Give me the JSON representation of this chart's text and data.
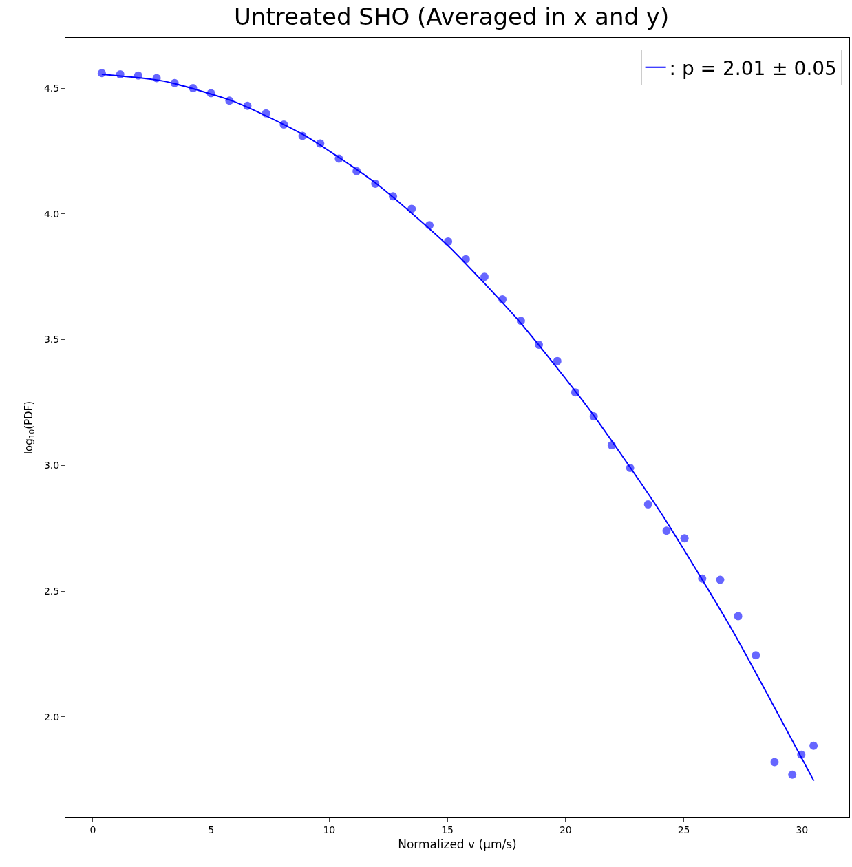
{
  "chart_data": {
    "type": "scatter",
    "title": "Untreated SHO (Averaged in x and y)",
    "xlabel": "Normalized v (μm/s)",
    "ylabel": "log$_{10}$(PDF)",
    "xlim": [
      -1.16,
      32.0
    ],
    "ylim": [
      1.6,
      4.7
    ],
    "xticks": [
      0,
      5,
      10,
      15,
      20,
      25,
      30
    ],
    "yticks": [
      {
        "value": 2,
        "label": "2.0"
      },
      {
        "value": 2.5,
        "label": "2.5"
      },
      {
        "value": 3,
        "label": "3.0"
      },
      {
        "value": 3.5,
        "label": "3.5"
      },
      {
        "value": 4,
        "label": "4.0"
      },
      {
        "value": 4.5,
        "label": "4.5"
      }
    ],
    "grid": false,
    "legend": "top right",
    "series": [
      {
        "color": "#0000ff",
        "marker": "circle",
        "x": [
          0.38,
          1.16,
          1.92,
          2.7,
          3.46,
          4.24,
          5.0,
          5.78,
          6.54,
          7.33,
          8.08,
          8.87,
          9.62,
          10.41,
          11.16,
          11.95,
          12.7,
          13.49,
          14.24,
          15.03,
          15.78,
          16.57,
          17.33,
          18.11,
          18.87,
          19.65,
          20.41,
          21.19,
          21.95,
          22.73,
          23.49,
          24.27,
          25.03,
          25.78,
          26.54,
          27.3,
          28.05,
          28.84,
          29.59,
          29.97,
          30.49
        ],
        "values": [
          4.56,
          4.555,
          4.55,
          4.54,
          4.52,
          4.5,
          4.48,
          4.45,
          4.43,
          4.4,
          4.355,
          4.31,
          4.28,
          4.22,
          4.17,
          4.12,
          4.07,
          4.02,
          3.955,
          3.89,
          3.82,
          3.75,
          3.66,
          3.575,
          3.48,
          3.415,
          3.29,
          3.195,
          3.08,
          2.99,
          2.845,
          2.74,
          2.71,
          2.55,
          2.545,
          2.4,
          2.245,
          1.82,
          1.77,
          1.85,
          1.885
        ]
      },
      {
        "type": "line",
        "name": ": p = 2.01 ± 0.05",
        "color": "#0000ff",
        "line_style": "solid",
        "x": [
          0.38,
          3,
          6,
          9,
          12,
          15,
          18,
          21,
          24,
          27,
          30.5
        ],
        "values": [
          4.555,
          4.528,
          4.446,
          4.31,
          4.12,
          3.876,
          3.577,
          3.223,
          2.816,
          2.353,
          1.746
        ]
      }
    ]
  }
}
